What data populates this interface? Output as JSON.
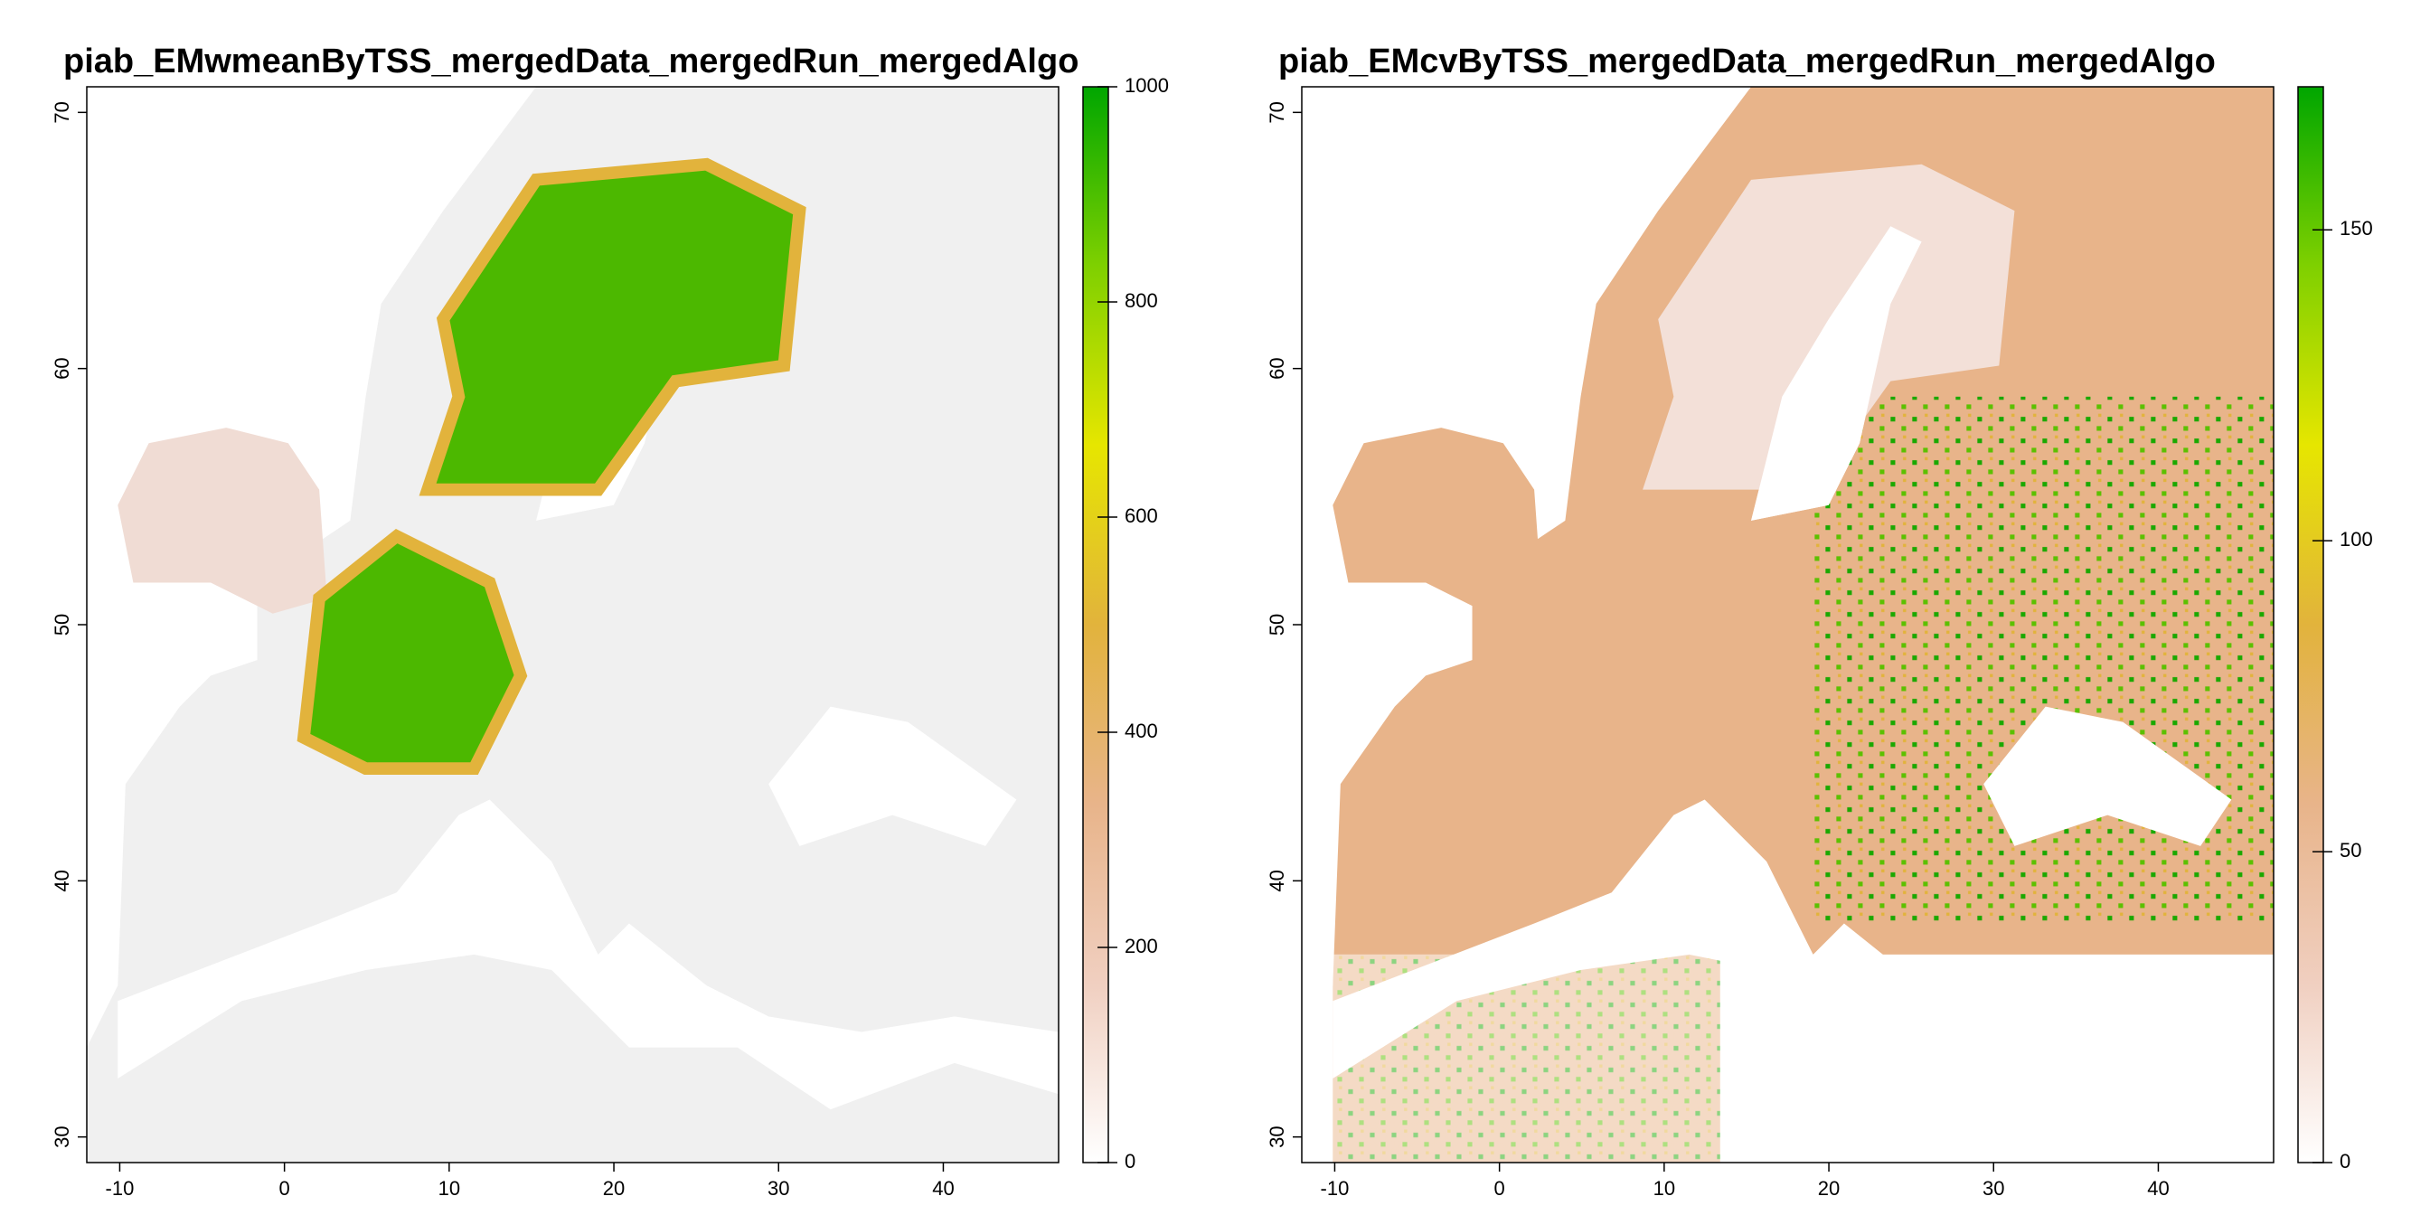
{
  "panels": [
    {
      "title": "piab_EMwmeanByTSS_mergedData_mergedRun_mergedAlgo",
      "xlim": [
        -12,
        47
      ],
      "ylim": [
        29,
        71
      ],
      "xticks": [
        -10,
        0,
        10,
        20,
        30,
        40
      ],
      "yticks": [
        30,
        40,
        50,
        60,
        70
      ],
      "colorbar": {
        "lim": [
          0,
          1000
        ],
        "ticks": [
          0,
          200,
          400,
          600,
          800,
          1000
        ],
        "colors": [
          "#ffffff",
          "#f0cfc0",
          "#e8b48a",
          "#e2b33c",
          "#e6e600",
          "#7fd000",
          "#00a600"
        ]
      }
    },
    {
      "title": "piab_EMcvByTSS_mergedData_mergedRun_mergedAlgo",
      "xlim": [
        -12,
        47
      ],
      "ylim": [
        29,
        71
      ],
      "xticks": [
        -10,
        0,
        10,
        20,
        30,
        40
      ],
      "yticks": [
        30,
        40,
        50,
        60,
        70
      ],
      "colorbar": {
        "lim": [
          0,
          173
        ],
        "ticks": [
          0,
          50,
          100,
          150
        ],
        "colors": [
          "#ffffff",
          "#f0cfc0",
          "#e8b48a",
          "#e2b33c",
          "#e6e600",
          "#7fd000",
          "#00a600"
        ]
      }
    }
  ]
}
